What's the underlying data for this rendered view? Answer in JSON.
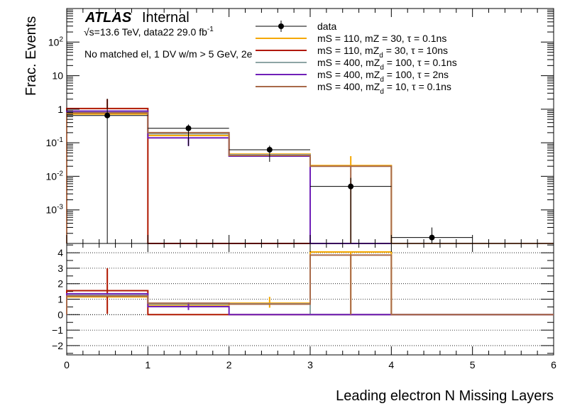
{
  "chart_data": [
    {
      "type": "histogram",
      "panel": "main",
      "ylabel": "Frac. Events",
      "yscale": "log",
      "ylim": [
        0.0001,
        1000
      ],
      "xlim": [
        0,
        6
      ],
      "bin_edges": [
        0,
        1,
        2,
        3,
        4,
        5,
        6
      ],
      "y_ticks": [
        {
          "v": 0.001,
          "base": "10",
          "exp": "-3"
        },
        {
          "v": 0.01,
          "base": "10",
          "exp": "-2"
        },
        {
          "v": 0.1,
          "base": "10",
          "exp": "-1"
        },
        {
          "v": 1,
          "base": "1",
          "exp": ""
        },
        {
          "v": 10,
          "base": "10",
          "exp": ""
        },
        {
          "v": 100,
          "base": "10",
          "exp": "2"
        }
      ],
      "data_points": {
        "name": "data",
        "x": [
          0.5,
          1.5,
          2.5,
          3.5,
          4.5
        ],
        "y": [
          0.65,
          0.27,
          0.062,
          0.005,
          0.00015
        ],
        "yerr_low": [
          0.65,
          0.19,
          0.035,
          0.005,
          0.00015
        ],
        "yerr_high": [
          1.4,
          0.08,
          0.02,
          0.004,
          0.00015
        ],
        "xerr": 0.5
      },
      "series": [
        {
          "name_parts": [
            "mS = 110, mZ",
            "",
            " = 30, τ = 0.1ns"
          ],
          "color": "#f5a800",
          "values": [
            0.72,
            0.165,
            0.046,
            0.021,
            0,
            0
          ],
          "errors": [
            [
              1,
              2,
              0.2
            ],
            [
              3,
              4,
              0.04
            ]
          ]
        },
        {
          "name_parts": [
            "mS = 110, mZ",
            "d",
            " = 30, τ = 10ns"
          ],
          "color": "#b01800",
          "values": [
            1.05,
            0.0001,
            0.0001,
            0.0001,
            0,
            0
          ],
          "errors": [
            [
              0,
              1,
              2.0
            ]
          ]
        },
        {
          "name_parts": [
            "mS = 400, mZ",
            "d",
            " = 100, τ = 0.1ns"
          ],
          "color": "#8ea5a5",
          "values": [
            0.82,
            0.185,
            0.044,
            0.0001,
            0,
            0
          ],
          "errors": []
        },
        {
          "name_parts": [
            "mS = 400, mZ",
            "d",
            " = 100, τ = 2ns"
          ],
          "color": "#7020b8",
          "values": [
            0.88,
            0.14,
            0.04,
            0.0001,
            0,
            0
          ],
          "errors": [
            [
              1,
              1.5,
              0.08
            ]
          ]
        },
        {
          "name_parts": [
            "mS = 400, mZ",
            "d",
            " = 10, τ = 0.1ns"
          ],
          "color": "#a86a4a",
          "values": [
            0.78,
            0.2,
            0.042,
            0.02,
            0,
            0
          ],
          "errors": [
            [
              3,
              3.5,
              0.0001
            ]
          ]
        }
      ]
    },
    {
      "type": "ratio",
      "panel": "ratio",
      "xlabel": "Leading electron N Missing Layers",
      "ylim": [
        -2.6,
        4.6
      ],
      "y_ticks": [
        "4",
        "3",
        "2",
        "1",
        "0",
        "−1",
        "−2"
      ],
      "y_tick_values": [
        4,
        3,
        2,
        1,
        0,
        -1,
        -2
      ],
      "x_ticks": [
        "0",
        "1",
        "2",
        "3",
        "4",
        "5",
        "6"
      ],
      "series": [
        {
          "color": "#f5a800",
          "values": [
            1.15,
            0.62,
            0.74,
            4.05,
            0,
            0
          ],
          "errors": [
            [
              2.5,
              0.45,
              1.15
            ],
            [
              3.5,
              -0.05,
              4.05
            ]
          ]
        },
        {
          "color": "#b01800",
          "values": [
            1.55,
            0.0,
            0.0,
            0.0,
            0,
            0
          ],
          "errors": [
            [
              0.5,
              0.05,
              3.0
            ]
          ]
        },
        {
          "color": "#8ea5a5",
          "values": [
            1.25,
            0.68,
            0.7,
            0.0,
            0,
            0
          ],
          "errors": []
        },
        {
          "color": "#7020b8",
          "values": [
            1.35,
            0.52,
            0.0,
            0.0,
            0,
            0
          ],
          "errors": [
            [
              1.5,
              0.3,
              0.8
            ]
          ]
        },
        {
          "color": "#a86a4a",
          "values": [
            1.2,
            0.74,
            0.68,
            3.85,
            0,
            0
          ],
          "errors": [
            [
              3.5,
              0.0,
              3.85
            ]
          ]
        }
      ]
    }
  ],
  "labels": {
    "atlas": "ATLAS",
    "internal": "Internal",
    "energy_prefix": "√s=13.6 TeV, data22 29.0 fb",
    "energy_sup": "-1",
    "selection": "No matched el, 1 DV w/m > 5 GeV, 2e",
    "legend_data": "data"
  }
}
